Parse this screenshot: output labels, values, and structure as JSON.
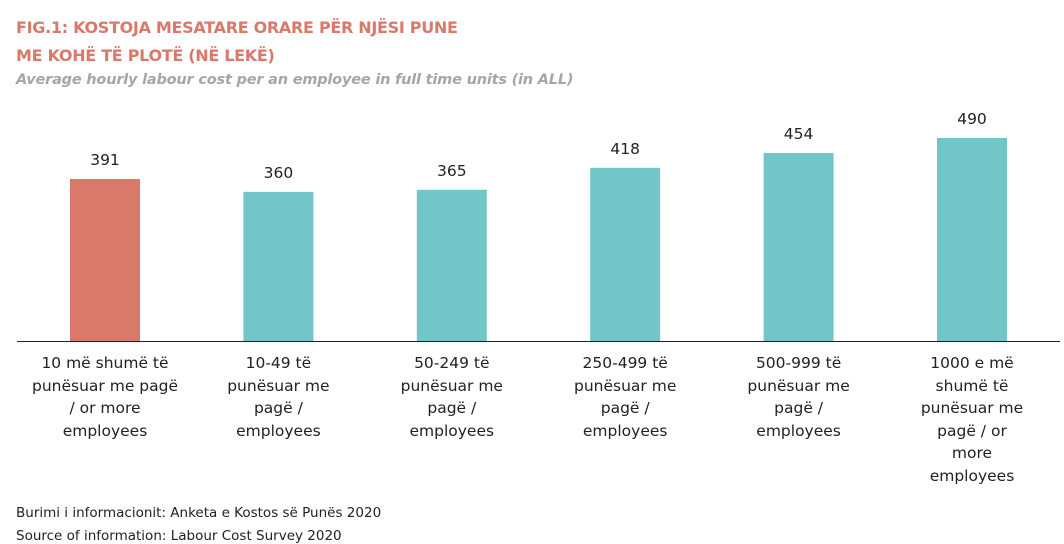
{
  "chart_data": {
    "type": "bar",
    "title": "FIG.1: KOSTOJA MESATARE ORARE PËR NJËSI PUNE ME KOHË TË PLOTË (NË LEKË)",
    "subtitle": "Average hourly labour cost per an employee in full time units (in ALL)",
    "categories": [
      "10 më shumë të punësuar me pagë / or more employees",
      "10-49 të punësuar me pagë / employees",
      "50-249 të punësuar me pagë / employees",
      "250-499 të punësuar me pagë / employees",
      "500-999 të punësuar me pagë / employees",
      "1000 e më shumë të punësuar me pagë / or more employees"
    ],
    "values": [
      391,
      360,
      365,
      418,
      454,
      490
    ],
    "colors": [
      "#d9796a",
      "#72c6c8",
      "#72c6c8",
      "#72c6c8",
      "#72c6c8",
      "#72c6c8"
    ],
    "source": "Burimi i informacionit: Anketa e Kostos së Punës 2020",
    "source_en": "Source of information: Labour Cost Survey 2020"
  }
}
